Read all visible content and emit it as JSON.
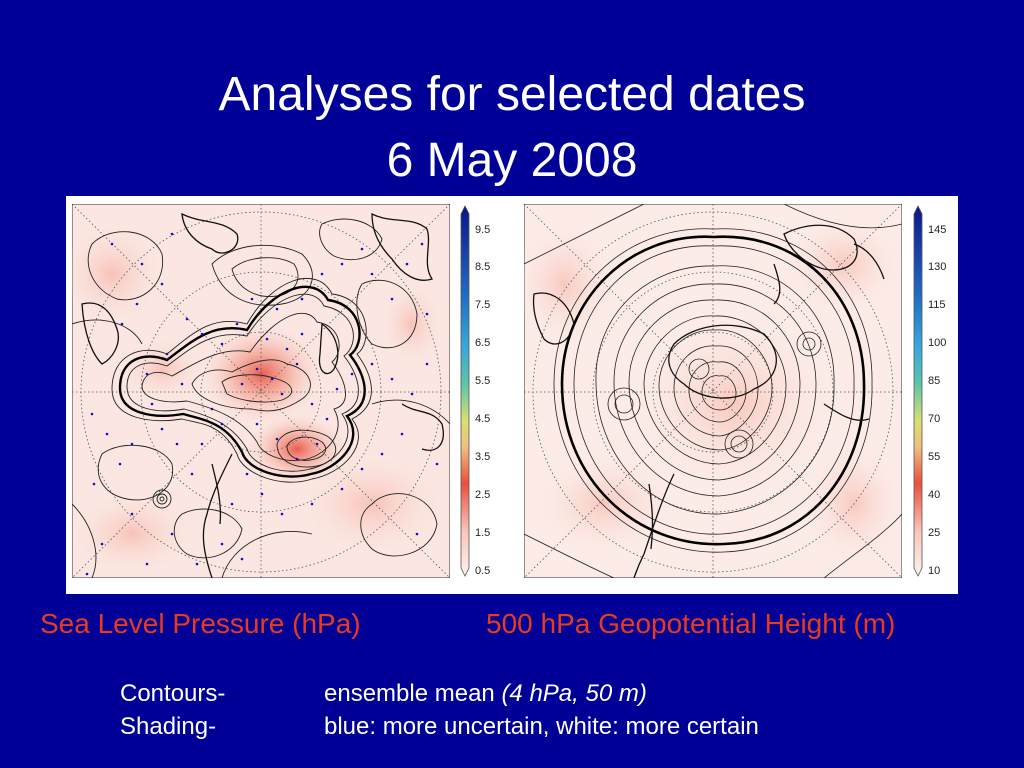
{
  "title": {
    "line1": "Analyses for selected dates",
    "line2": "6 May 2008"
  },
  "panels": [
    {
      "caption": "Sea Level Pressure (hPa)",
      "colorbar_ticks": [
        "9.5",
        "8.5",
        "7.5",
        "6.5",
        "5.5",
        "4.5",
        "3.5",
        "2.5",
        "1.5",
        "0.5"
      ]
    },
    {
      "caption": "500 hPa Geopotential Height (m)",
      "colorbar_ticks": [
        "145",
        "130",
        "115",
        "100",
        "85",
        "70",
        "55",
        "40",
        "25",
        "10"
      ]
    }
  ],
  "legend": {
    "contours_term": "Contours-",
    "contours_def": "ensemble mean ",
    "contours_units": "(4 hPa, 50 m)",
    "shading_term": "Shading-",
    "shading_def": "blue: more uncertain, white: more certain"
  },
  "colors": {
    "background": "#000096",
    "title": "#ffffff",
    "caption": "#e83a1c",
    "colormap": [
      "#fde9e4",
      "#f9b4a8",
      "#ea4f3b",
      "#d4d95a",
      "#48b8a4",
      "#35a6dc",
      "#1f78c8",
      "#1540a8",
      "#0a1a8a"
    ]
  }
}
